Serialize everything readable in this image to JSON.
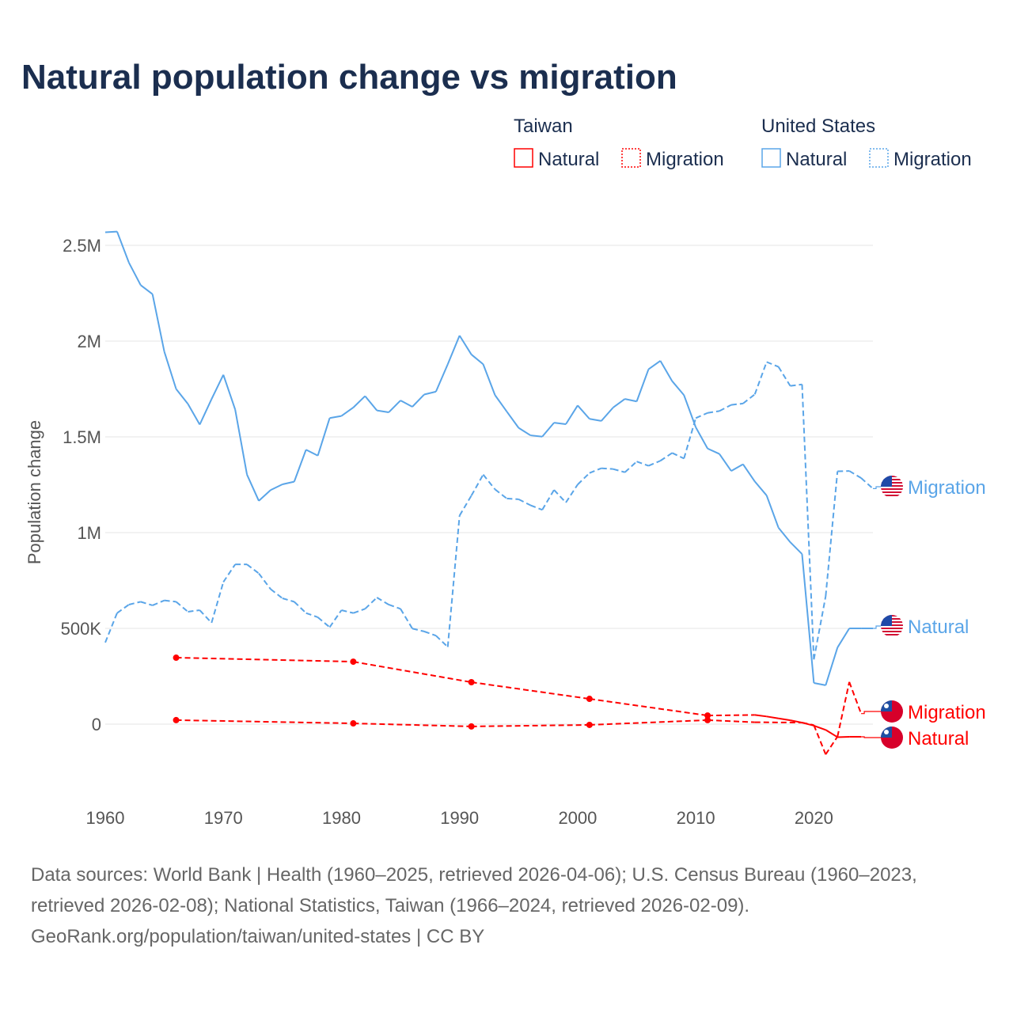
{
  "title": "Natural population change vs migration",
  "legend": {
    "groups": [
      {
        "name": "Taiwan",
        "items": [
          "Natural",
          "Migration"
        ]
      },
      {
        "name": "United States",
        "items": [
          "Natural",
          "Migration"
        ]
      }
    ]
  },
  "colors": {
    "us": "#5aa5e8",
    "taiwan": "#ff0000",
    "grid": "#e6e6e6",
    "title": "#1b2e4f"
  },
  "icons": {
    "us_flag": "us-flag-icon",
    "taiwan_flag": "taiwan-flag-icon"
  },
  "footer": [
    "Data sources: World Bank | Health (1960–2025, retrieved 2026-04-06); U.S. Census Bureau (1960–2023,",
    "retrieved 2026-02-08); National Statistics, Taiwan (1966–2024, retrieved 2026-02-09).",
    "GeoRank.org/population/taiwan/united-states | CC BY"
  ],
  "chart_data": {
    "type": "line",
    "title": "Natural population change vs migration",
    "xlabel": "",
    "ylabel": "Population change",
    "xlim": [
      1960,
      2025
    ],
    "ylim": [
      -250000,
      2600000
    ],
    "x_ticks": [
      1960,
      1970,
      1980,
      1990,
      2000,
      2010,
      2020
    ],
    "x_tick_labels": [
      "1960",
      "1970",
      "1980",
      "1990",
      "2000",
      "2010",
      "2020"
    ],
    "y_ticks": [
      0,
      500000,
      1000000,
      1500000,
      2000000,
      2500000
    ],
    "y_tick_labels": [
      "0",
      "500K",
      "1M",
      "1.5M",
      "2M",
      "2.5M"
    ],
    "grid": true,
    "legend_position": "top-right",
    "series": [
      {
        "name": "Natural",
        "country": "United States",
        "end_label": "Natural",
        "style": "solid",
        "color": "#5aa5e8",
        "x": [
          1960,
          1961,
          1962,
          1963,
          1964,
          1965,
          1966,
          1967,
          1968,
          1969,
          1970,
          1971,
          1972,
          1973,
          1974,
          1975,
          1976,
          1977,
          1978,
          1979,
          1980,
          1981,
          1982,
          1983,
          1984,
          1985,
          1986,
          1987,
          1988,
          1989,
          1990,
          1991,
          1992,
          1993,
          1994,
          1995,
          1996,
          1997,
          1998,
          1999,
          2000,
          2001,
          2002,
          2003,
          2004,
          2005,
          2006,
          2007,
          2008,
          2009,
          2010,
          2011,
          2012,
          2013,
          2014,
          2015,
          2016,
          2017,
          2018,
          2019,
          2020,
          2021,
          2022,
          2023,
          2024,
          2025
        ],
        "values": [
          2568000,
          2572000,
          2410000,
          2292000,
          2245000,
          1945000,
          1750000,
          1672000,
          1564000,
          1697000,
          1824000,
          1643000,
          1303000,
          1166000,
          1222000,
          1252000,
          1266000,
          1433000,
          1402000,
          1598000,
          1609000,
          1653000,
          1713000,
          1638000,
          1628000,
          1690000,
          1657000,
          1721000,
          1736000,
          1879000,
          2029000,
          1930000,
          1879000,
          1718000,
          1632000,
          1547000,
          1508000,
          1501000,
          1574000,
          1566000,
          1664000,
          1594000,
          1583000,
          1653000,
          1698000,
          1685000,
          1853000,
          1897000,
          1791000,
          1718000,
          1550000,
          1439000,
          1411000,
          1322000,
          1357000,
          1267000,
          1194000,
          1026000,
          950000,
          888000,
          215000,
          203000,
          400000,
          500000,
          500000,
          500000
        ]
      },
      {
        "name": "Migration",
        "country": "United States",
        "end_label": "Migration",
        "style": "dashed",
        "color": "#5aa5e8",
        "x": [
          1960,
          1961,
          1962,
          1963,
          1964,
          1965,
          1966,
          1967,
          1968,
          1969,
          1970,
          1971,
          1972,
          1973,
          1974,
          1975,
          1976,
          1977,
          1978,
          1979,
          1980,
          1981,
          1982,
          1983,
          1984,
          1985,
          1986,
          1987,
          1988,
          1989,
          1990,
          1991,
          1992,
          1993,
          1994,
          1995,
          1996,
          1997,
          1998,
          1999,
          2000,
          2001,
          2002,
          2003,
          2004,
          2005,
          2006,
          2007,
          2008,
          2009,
          2010,
          2011,
          2012,
          2013,
          2014,
          2015,
          2016,
          2017,
          2018,
          2019,
          2020,
          2021,
          2022,
          2023,
          2024,
          2025
        ],
        "values": [
          426000,
          580000,
          624000,
          639000,
          620000,
          646000,
          639000,
          587000,
          595000,
          529000,
          742000,
          834000,
          834000,
          787000,
          705000,
          657000,
          639000,
          580000,
          558000,
          506000,
          595000,
          580000,
          602000,
          661000,
          624000,
          602000,
          499000,
          484000,
          462000,
          403000,
          1089000,
          1193000,
          1303000,
          1226000,
          1178000,
          1174000,
          1143000,
          1119000,
          1223000,
          1157000,
          1251000,
          1311000,
          1336000,
          1332000,
          1315000,
          1371000,
          1349000,
          1375000,
          1416000,
          1387000,
          1598000,
          1625000,
          1635000,
          1667000,
          1674000,
          1722000,
          1891000,
          1866000,
          1766000,
          1774000,
          338000,
          668000,
          1320000,
          1322000,
          1285000,
          1230000
        ]
      },
      {
        "name": "Natural",
        "country": "Taiwan",
        "end_label": "Natural",
        "style": "dashed-then-solid",
        "color": "#ff0000",
        "marker_years": [
          1966,
          1981,
          1991,
          2001,
          2011
        ],
        "solid_from": 2015,
        "x": [
          1966,
          1981,
          1991,
          2001,
          2011,
          2015,
          2016,
          2017,
          2018,
          2019,
          2020,
          2021,
          2022,
          2023,
          2024
        ],
        "values": [
          347000,
          326000,
          219000,
          132000,
          45000,
          48000,
          40000,
          30000,
          20000,
          8000,
          -8000,
          -30000,
          -68000,
          -66000,
          -66000
        ]
      },
      {
        "name": "Migration",
        "country": "Taiwan",
        "end_label": "Migration",
        "style": "dashed",
        "color": "#ff0000",
        "marker_years": [
          1966,
          1981,
          1991,
          2001,
          2011
        ],
        "x": [
          1966,
          1981,
          1991,
          2001,
          2011,
          2015,
          2019,
          2020,
          2021,
          2022,
          2023,
          2024
        ],
        "values": [
          21000,
          4000,
          -12000,
          -4000,
          21000,
          10000,
          8000,
          -5000,
          -158000,
          -65000,
          220000,
          55000
        ]
      }
    ]
  }
}
